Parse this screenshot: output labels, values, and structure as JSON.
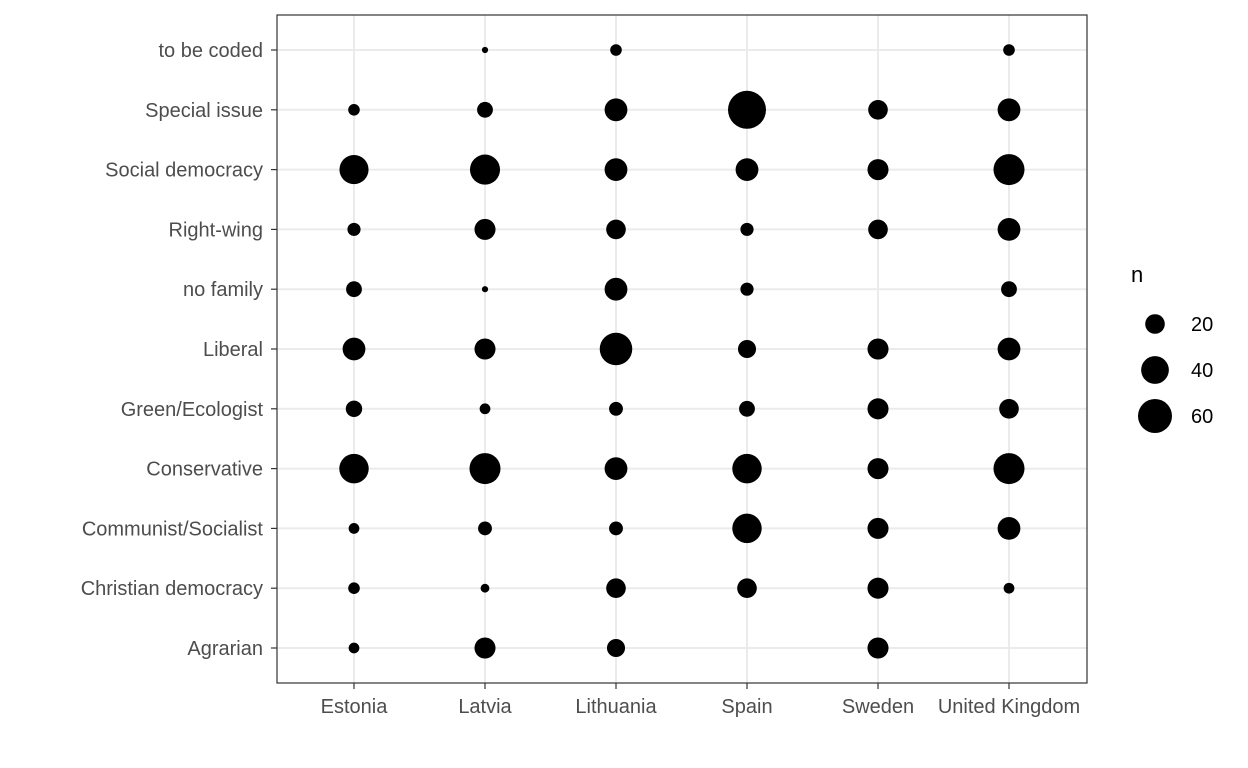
{
  "chart_data": {
    "type": "scatter",
    "title": "",
    "xlabel": "",
    "ylabel": "",
    "x_categories": [
      "Estonia",
      "Latvia",
      "Lithuania",
      "Spain",
      "Sweden",
      "United Kingdom"
    ],
    "y_categories": [
      "Agrarian",
      "Christian democracy",
      "Communist/Socialist",
      "Conservative",
      "Green/Ecologist",
      "Liberal",
      "no family",
      "Right-wing",
      "Social democracy",
      "Special issue",
      "to be coded"
    ],
    "size_variable": "n",
    "points": [
      {
        "x": "Estonia",
        "y": "Agrarian",
        "n": 6
      },
      {
        "x": "Estonia",
        "y": "Christian democracy",
        "n": 7
      },
      {
        "x": "Estonia",
        "y": "Communist/Socialist",
        "n": 6
      },
      {
        "x": "Estonia",
        "y": "Conservative",
        "n": 45
      },
      {
        "x": "Estonia",
        "y": "Green/Ecologist",
        "n": 14
      },
      {
        "x": "Estonia",
        "y": "Liberal",
        "n": 27
      },
      {
        "x": "Estonia",
        "y": "no family",
        "n": 13
      },
      {
        "x": "Estonia",
        "y": "Right-wing",
        "n": 9
      },
      {
        "x": "Estonia",
        "y": "Social democracy",
        "n": 44
      },
      {
        "x": "Estonia",
        "y": "Special issue",
        "n": 7
      },
      {
        "x": "Latvia",
        "y": "Agrarian",
        "n": 23
      },
      {
        "x": "Latvia",
        "y": "Christian democracy",
        "n": 4
      },
      {
        "x": "Latvia",
        "y": "Communist/Socialist",
        "n": 10
      },
      {
        "x": "Latvia",
        "y": "Conservative",
        "n": 50
      },
      {
        "x": "Latvia",
        "y": "Green/Ecologist",
        "n": 6
      },
      {
        "x": "Latvia",
        "y": "Liberal",
        "n": 23
      },
      {
        "x": "Latvia",
        "y": "no family",
        "n": 2
      },
      {
        "x": "Latvia",
        "y": "Right-wing",
        "n": 23
      },
      {
        "x": "Latvia",
        "y": "Social democracy",
        "n": 47
      },
      {
        "x": "Latvia",
        "y": "Special issue",
        "n": 13
      },
      {
        "x": "Latvia",
        "y": "to be coded",
        "n": 2
      },
      {
        "x": "Lithuania",
        "y": "Agrarian",
        "n": 17
      },
      {
        "x": "Lithuania",
        "y": "Christian democracy",
        "n": 20
      },
      {
        "x": "Lithuania",
        "y": "Communist/Socialist",
        "n": 10
      },
      {
        "x": "Lithuania",
        "y": "Conservative",
        "n": 27
      },
      {
        "x": "Lithuania",
        "y": "Green/Ecologist",
        "n": 10
      },
      {
        "x": "Lithuania",
        "y": "Liberal",
        "n": 55
      },
      {
        "x": "Lithuania",
        "y": "no family",
        "n": 27
      },
      {
        "x": "Lithuania",
        "y": "Right-wing",
        "n": 20
      },
      {
        "x": "Lithuania",
        "y": "Social democracy",
        "n": 27
      },
      {
        "x": "Lithuania",
        "y": "Special issue",
        "n": 27
      },
      {
        "x": "Lithuania",
        "y": "to be coded",
        "n": 7
      },
      {
        "x": "Spain",
        "y": "Christian democracy",
        "n": 20
      },
      {
        "x": "Spain",
        "y": "Communist/Socialist",
        "n": 45
      },
      {
        "x": "Spain",
        "y": "Conservative",
        "n": 45
      },
      {
        "x": "Spain",
        "y": "Green/Ecologist",
        "n": 13
      },
      {
        "x": "Spain",
        "y": "Liberal",
        "n": 17
      },
      {
        "x": "Spain",
        "y": "no family",
        "n": 9
      },
      {
        "x": "Spain",
        "y": "Right-wing",
        "n": 9
      },
      {
        "x": "Spain",
        "y": "Social democracy",
        "n": 27
      },
      {
        "x": "Spain",
        "y": "Special issue",
        "n": 75
      },
      {
        "x": "Sweden",
        "y": "Agrarian",
        "n": 23
      },
      {
        "x": "Sweden",
        "y": "Christian democracy",
        "n": 23
      },
      {
        "x": "Sweden",
        "y": "Communist/Socialist",
        "n": 23
      },
      {
        "x": "Sweden",
        "y": "Conservative",
        "n": 23
      },
      {
        "x": "Sweden",
        "y": "Green/Ecologist",
        "n": 23
      },
      {
        "x": "Sweden",
        "y": "Liberal",
        "n": 23
      },
      {
        "x": "Sweden",
        "y": "Right-wing",
        "n": 20
      },
      {
        "x": "Sweden",
        "y": "Social democracy",
        "n": 23
      },
      {
        "x": "Sweden",
        "y": "Special issue",
        "n": 20
      },
      {
        "x": "United Kingdom",
        "y": "Christian democracy",
        "n": 6
      },
      {
        "x": "United Kingdom",
        "y": "Communist/Socialist",
        "n": 27
      },
      {
        "x": "United Kingdom",
        "y": "Conservative",
        "n": 50
      },
      {
        "x": "United Kingdom",
        "y": "Green/Ecologist",
        "n": 20
      },
      {
        "x": "United Kingdom",
        "y": "Liberal",
        "n": 27
      },
      {
        "x": "United Kingdom",
        "y": "no family",
        "n": 13
      },
      {
        "x": "United Kingdom",
        "y": "Right-wing",
        "n": 27
      },
      {
        "x": "United Kingdom",
        "y": "Social democracy",
        "n": 50
      },
      {
        "x": "United Kingdom",
        "y": "Special issue",
        "n": 27
      },
      {
        "x": "United Kingdom",
        "y": "to be coded",
        "n": 7
      }
    ],
    "legend": {
      "title": "n",
      "placement": "right",
      "breaks": [
        20,
        40,
        60
      ]
    },
    "grid": true,
    "point_color": "#000000",
    "gridline_color": "#ebebeb",
    "panel_border_color": "#333333",
    "tick_label_color": "#4d4d4d"
  }
}
